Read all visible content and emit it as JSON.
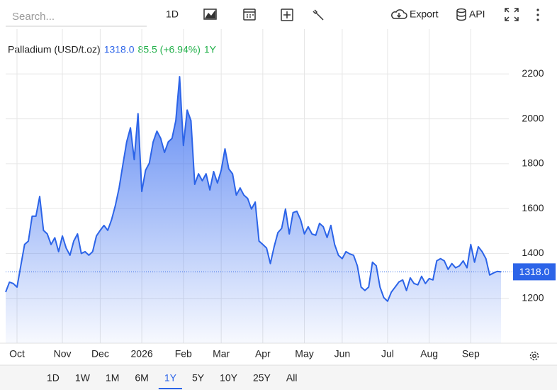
{
  "toolbar": {
    "search_placeholder": "Search...",
    "interval": "1D",
    "export": "Export",
    "api": "API"
  },
  "legend": {
    "last": "1318.0",
    "change": "85.5 (+6.94%)",
    "period": "1Y"
  },
  "range_buttons": [
    "1D",
    "1W",
    "1M",
    "6M",
    "1Y",
    "5Y",
    "10Y",
    "25Y",
    "All"
  ],
  "selected_range": 4,
  "chart_data": {
    "type": "line",
    "categories": [
      null,
      null,
      null,
      "Oct",
      null,
      null,
      null,
      null,
      null,
      null,
      null,
      null,
      null,
      null,
      null,
      "Nov",
      null,
      null,
      null,
      null,
      null,
      null,
      null,
      null,
      null,
      "Dec",
      null,
      null,
      null,
      null,
      null,
      null,
      null,
      null,
      null,
      null,
      "2026",
      null,
      null,
      null,
      null,
      null,
      null,
      null,
      null,
      null,
      null,
      "Feb",
      null,
      null,
      null,
      null,
      null,
      null,
      null,
      null,
      null,
      "Mar",
      null,
      null,
      null,
      null,
      null,
      null,
      null,
      null,
      null,
      null,
      "Apr",
      null,
      null,
      null,
      null,
      null,
      null,
      null,
      null,
      null,
      null,
      "May",
      null,
      null,
      null,
      null,
      null,
      null,
      null,
      null,
      null,
      "Jun",
      null,
      null,
      null,
      null,
      null,
      null,
      null,
      null,
      null,
      null,
      null,
      "Jul",
      null,
      null,
      null,
      null,
      null,
      null,
      null,
      null,
      null,
      null,
      "Aug",
      null,
      null,
      null,
      null,
      null,
      null,
      null,
      null,
      null,
      null,
      "Sep",
      null,
      null,
      null,
      null,
      null,
      null,
      null,
      null
    ],
    "series": [
      {
        "name": "Palladium (USD/t.oz)",
        "color": "#2c64e8",
        "values": [
          1228,
          1272,
          1266,
          1250,
          1345,
          1440,
          1455,
          1566,
          1566,
          1654,
          1503,
          1487,
          1440,
          1470,
          1408,
          1478,
          1424,
          1392,
          1455,
          1487,
          1400,
          1408,
          1392,
          1408,
          1478,
          1503,
          1525,
          1503,
          1550,
          1613,
          1692,
          1796,
          1897,
          1960,
          1818,
          2023,
          1676,
          1771,
          1803,
          1897,
          1945,
          1913,
          1850,
          1897,
          1913,
          1992,
          2188,
          1881,
          2039,
          1992,
          1708,
          1755,
          1724,
          1755,
          1683,
          1765,
          1714,
          1771,
          1866,
          1777,
          1755,
          1660,
          1692,
          1660,
          1645,
          1598,
          1629,
          1455,
          1440,
          1424,
          1355,
          1430,
          1493,
          1512,
          1598,
          1487,
          1582,
          1588,
          1550,
          1487,
          1519,
          1487,
          1481,
          1534,
          1519,
          1471,
          1525,
          1440,
          1392,
          1377,
          1408,
          1398,
          1392,
          1345,
          1250,
          1235,
          1250,
          1361,
          1345,
          1250,
          1203,
          1187,
          1228,
          1250,
          1273,
          1282,
          1235,
          1291,
          1266,
          1260,
          1298,
          1266,
          1288,
          1282,
          1367,
          1377,
          1367,
          1329,
          1355,
          1336,
          1345,
          1367,
          1336,
          1440,
          1361,
          1430,
          1408,
          1377,
          1304,
          1313,
          1320,
          1318
        ]
      }
    ],
    "ylim": [
      1000,
      2400
    ],
    "yticks": [
      1200,
      1400,
      1600,
      1800,
      2000,
      2200
    ],
    "grid": true
  }
}
